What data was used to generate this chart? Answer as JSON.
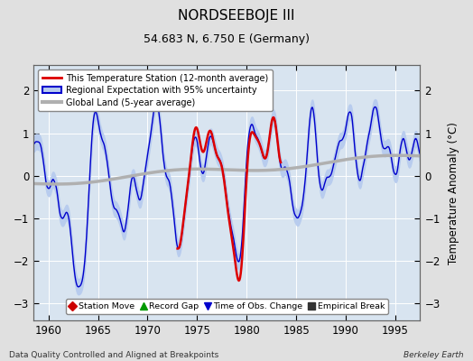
{
  "title": "NORDSEEBOJE III",
  "subtitle": "54.683 N, 6.750 E (Germany)",
  "ylabel": "Temperature Anomaly (°C)",
  "xlabel_bottom_left": "Data Quality Controlled and Aligned at Breakpoints",
  "xlabel_bottom_right": "Berkeley Earth",
  "xlim": [
    1958.5,
    1997.5
  ],
  "ylim": [
    -3.4,
    2.6
  ],
  "yticks": [
    -3,
    -2,
    -1,
    0,
    1,
    2
  ],
  "xticks": [
    1960,
    1965,
    1970,
    1975,
    1980,
    1985,
    1990,
    1995
  ],
  "bg_color": "#e0e0e0",
  "plot_bg_color": "#d8e4f0",
  "grid_color": "#ffffff",
  "regional_fill_color": "#b8ccee",
  "regional_line_color": "#0000cc",
  "station_line_color": "#dd0000",
  "global_land_color": "#b0b0b0",
  "legend1_entries": [
    {
      "label": "This Temperature Station (12-month average)",
      "color": "#dd0000",
      "lw": 2
    },
    {
      "label": "Regional Expectation with 95% uncertainty",
      "color": "#0000cc",
      "lw": 2
    },
    {
      "label": "Global Land (5-year average)",
      "color": "#b0b0b0",
      "lw": 3
    }
  ],
  "legend2_entries": [
    {
      "label": "Station Move",
      "marker": "D",
      "color": "#cc0000"
    },
    {
      "label": "Record Gap",
      "marker": "^",
      "color": "#009900"
    },
    {
      "label": "Time of Obs. Change",
      "marker": "v",
      "color": "#0000cc"
    },
    {
      "label": "Empirical Break",
      "marker": "s",
      "color": "#333333"
    }
  ],
  "station_start": 1973.0,
  "station_end": 1983.5
}
